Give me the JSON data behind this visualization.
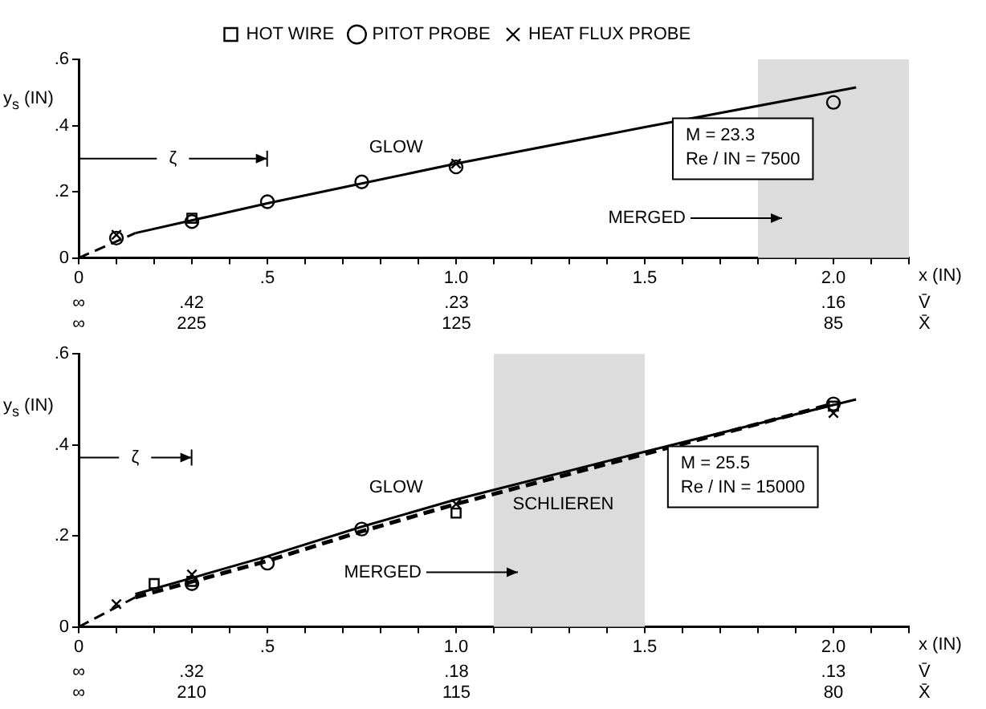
{
  "chart_data": [
    {
      "type": "scatter",
      "xlabel": "x (IN)",
      "ylabel": "y$_{s}$ (IN)",
      "xlim": [
        0,
        2.2
      ],
      "xticks": [
        0,
        {
          "value": 0.1,
          "label": null
        },
        {
          "value": 0.2,
          "label": null
        },
        {
          "value": 0.3,
          "label": null
        },
        {
          "value": 0.4,
          "label": null
        },
        {
          "value": 0.5,
          "label": ".5"
        },
        {
          "value": 0.6,
          "label": null
        },
        {
          "value": 0.7,
          "label": null
        },
        {
          "value": 0.8,
          "label": null
        },
        {
          "value": 0.9,
          "label": null
        },
        {
          "value": 1.0,
          "label": "1.0"
        },
        {
          "value": 1.1,
          "label": null
        },
        {
          "value": 1.2,
          "label": null
        },
        {
          "value": 1.3,
          "label": null
        },
        {
          "value": 1.4,
          "label": null
        },
        {
          "value": 1.5,
          "label": "1.5"
        },
        {
          "value": 1.6,
          "label": null
        },
        {
          "value": 1.7,
          "label": null
        },
        {
          "value": 1.8,
          "label": null
        },
        {
          "value": 1.9,
          "label": null
        },
        {
          "value": 2.0,
          "label": "2.0"
        },
        {
          "value": 2.1,
          "label": null
        },
        {
          "value": 2.2,
          "label": null
        }
      ],
      "ylim": [
        0,
        0.6
      ],
      "yticks": [
        0,
        {
          "value": 0.2,
          "label": ".2"
        },
        {
          "value": 0.4,
          "label": ".4"
        },
        {
          "value": 0.6,
          "label": ".6"
        }
      ],
      "grid": false,
      "legend": "top",
      "series": [
        {
          "type": "line",
          "color": "#000000",
          "marker": "none",
          "line_style": "dashed",
          "x": [
            0,
            0.15
          ],
          "values": [
            0,
            0.075
          ]
        },
        {
          "type": "line",
          "name": "GLOW",
          "color": "#000000",
          "marker": "none",
          "line_style": "solid",
          "x": [
            0.15,
            0.5,
            0.75,
            1.0,
            1.5,
            2.06
          ],
          "values": [
            0.075,
            0.165,
            0.225,
            0.285,
            0.395,
            0.515
          ]
        },
        {
          "type": "scatter",
          "name": "HOT WIRE",
          "color": "#000000",
          "marker": "square",
          "x": [
            0.3
          ],
          "values": [
            0.12
          ]
        },
        {
          "type": "scatter",
          "name": "PITOT PROBE",
          "color": "#000000",
          "marker": "circle",
          "x": [
            0.1,
            0.3,
            0.5,
            0.75,
            1.0,
            2.0
          ],
          "values": [
            0.06,
            0.11,
            0.17,
            0.23,
            0.275,
            0.47
          ]
        },
        {
          "type": "scatter",
          "name": "HEAT FLUX PROBE",
          "color": "#000000",
          "marker": "cross",
          "x": [
            0.1,
            1.0
          ],
          "values": [
            0.07,
            0.285
          ]
        }
      ],
      "bands": [
        {
          "axis": "x",
          "from": 1.8,
          "to": 2.2,
          "label": "MERGED",
          "color": "#dcdcdc"
        }
      ],
      "annotations": [
        "M = 23.3\nRe / IN = 7500",
        "ζ",
        "∞\t.42\t.23\t.16\tV̄",
        "∞\t225\t125\t85\tX̄"
      ]
    },
    {
      "type": "scatter",
      "xlabel": "x (IN)",
      "ylabel": "y$_{s}$ (IN)",
      "xlim": [
        0,
        2.2
      ],
      "xticks": [
        0,
        {
          "value": 0.1,
          "label": null
        },
        {
          "value": 0.2,
          "label": null
        },
        {
          "value": 0.3,
          "label": null
        },
        {
          "value": 0.4,
          "label": null
        },
        {
          "value": 0.5,
          "label": ".5"
        },
        {
          "value": 0.6,
          "label": null
        },
        {
          "value": 0.7,
          "label": null
        },
        {
          "value": 0.8,
          "label": null
        },
        {
          "value": 0.9,
          "label": null
        },
        {
          "value": 1.0,
          "label": "1.0"
        },
        {
          "value": 1.1,
          "label": null
        },
        {
          "value": 1.2,
          "label": null
        },
        {
          "value": 1.3,
          "label": null
        },
        {
          "value": 1.4,
          "label": null
        },
        {
          "value": 1.5,
          "label": "1.5"
        },
        {
          "value": 1.6,
          "label": null
        },
        {
          "value": 1.7,
          "label": null
        },
        {
          "value": 1.8,
          "label": null
        },
        {
          "value": 1.9,
          "label": null
        },
        {
          "value": 2.0,
          "label": "2.0"
        },
        {
          "value": 2.1,
          "label": null
        },
        {
          "value": 2.2,
          "label": null
        }
      ],
      "ylim": [
        0,
        0.6
      ],
      "yticks": [
        0,
        {
          "value": 0.2,
          "label": ".2"
        },
        {
          "value": 0.4,
          "label": ".4"
        },
        {
          "value": 0.6,
          "label": ".6"
        }
      ],
      "grid": false,
      "series": [
        {
          "type": "line",
          "color": "#000000",
          "marker": "none",
          "line_style": "dashed",
          "x": [
            0,
            0.15
          ],
          "values": [
            0,
            0.065
          ]
        },
        {
          "type": "line",
          "name": "GLOW",
          "color": "#000000",
          "marker": "none",
          "line_style": "solid",
          "x": [
            0.15,
            0.5,
            0.75,
            1.0,
            1.5,
            2.06
          ],
          "values": [
            0.072,
            0.155,
            0.22,
            0.28,
            0.385,
            0.5
          ]
        },
        {
          "type": "line",
          "name": "SCHLIEREN",
          "color": "#000000",
          "marker": "none",
          "line_style": "dashed",
          "x": [
            0.15,
            0.5,
            0.75,
            1.0,
            1.5,
            2.0
          ],
          "values": [
            0.065,
            0.145,
            0.21,
            0.27,
            0.38,
            0.49
          ]
        },
        {
          "type": "scatter",
          "color": "#000000",
          "marker": "square",
          "x": [
            0.2,
            0.3,
            1.0,
            2.0
          ],
          "values": [
            0.095,
            0.1,
            0.25,
            0.485
          ]
        },
        {
          "type": "scatter",
          "color": "#000000",
          "marker": "circle",
          "x": [
            0.3,
            0.5,
            0.75,
            2.0
          ],
          "values": [
            0.095,
            0.14,
            0.215,
            0.49
          ]
        },
        {
          "type": "scatter",
          "color": "#000000",
          "marker": "cross",
          "x": [
            0.1,
            0.3,
            1.0,
            2.0
          ],
          "values": [
            0.05,
            0.115,
            0.27,
            0.47
          ]
        }
      ],
      "bands": [
        {
          "axis": "x",
          "from": 1.1,
          "to": 1.5,
          "label": "MERGED",
          "color": "#dcdcdc"
        }
      ],
      "annotations": [
        "M = 25.5\nRe / IN = 15000",
        "ζ",
        "∞\t.32\t.18\t.13\tV̄",
        "∞\t210\t115\t80\tX̄"
      ]
    }
  ]
}
